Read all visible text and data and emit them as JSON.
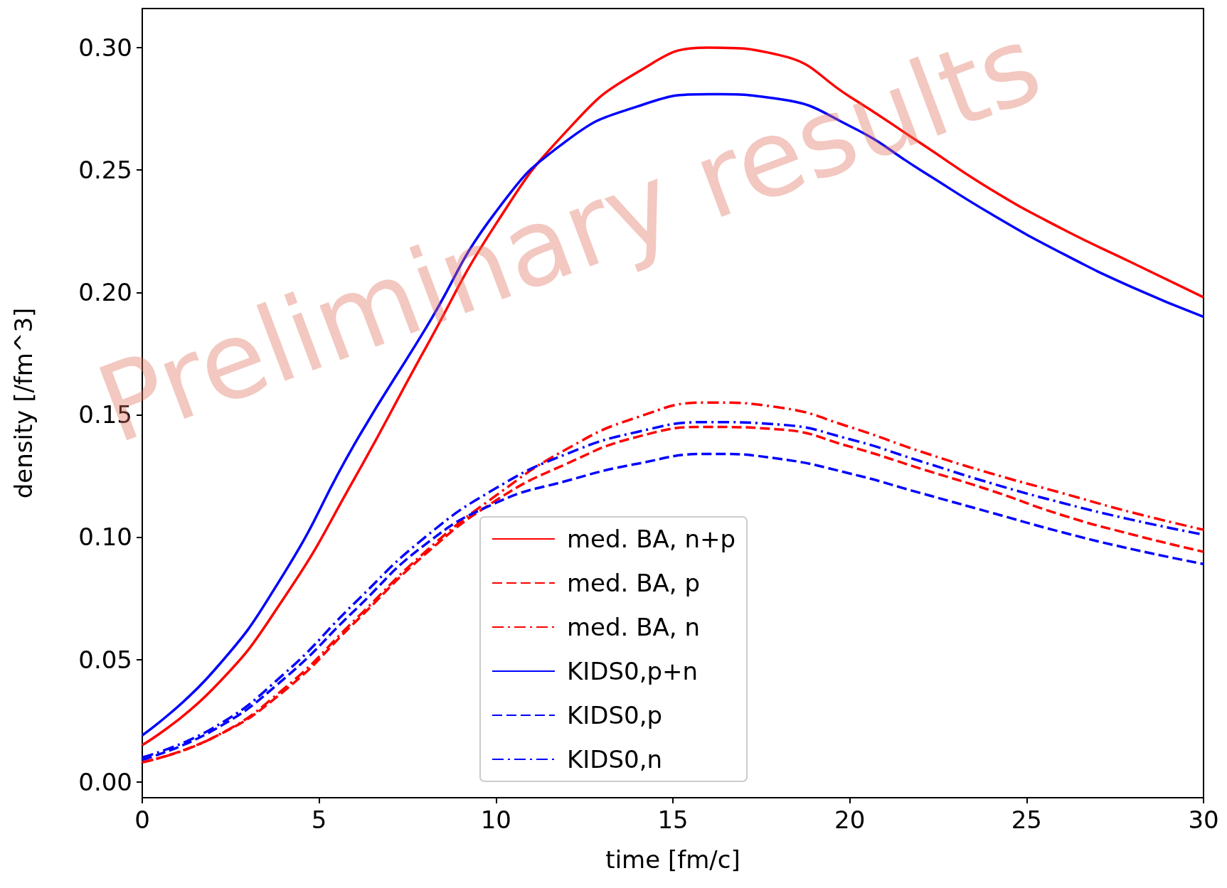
{
  "chart_data": {
    "type": "line",
    "xlabel": "time [fm/c]",
    "ylabel": "density [/fm^3]",
    "xlim": [
      0,
      30
    ],
    "ylim": [
      -0.0065,
      0.316
    ],
    "xticks": [
      0,
      5,
      10,
      15,
      20,
      25,
      30
    ],
    "yticks": [
      {
        "value": 0,
        "label": "0.00"
      },
      0.05,
      {
        "value": 0.1,
        "label": "0.10"
      },
      0.15,
      {
        "value": 0.2,
        "label": "0.20"
      },
      0.25,
      {
        "value": 0.3,
        "label": "0.30"
      }
    ],
    "grid": false,
    "legend": "bottom",
    "marker": "none",
    "annotations": [
      "Preliminary results"
    ],
    "x": [
      0,
      2,
      4,
      6,
      8,
      10,
      12,
      14,
      16,
      18,
      20,
      22,
      24,
      26,
      28,
      30
    ],
    "series": [
      {
        "name": "med. BA, n+p",
        "color": "#ff0000",
        "line_style": "solid",
        "values": [
          0.015,
          0.038,
          0.075,
          0.124,
          0.177,
          0.228,
          0.266,
          0.29,
          0.3,
          0.297,
          0.28,
          0.261,
          0.242,
          0.226,
          0.212,
          0.198
        ]
      },
      {
        "name": "med. BA, p",
        "color": "#ff0000",
        "line_style": "dashed",
        "values": [
          0.008,
          0.018,
          0.037,
          0.065,
          0.093,
          0.115,
          0.13,
          0.141,
          0.145,
          0.144,
          0.137,
          0.128,
          0.119,
          0.109,
          0.101,
          0.094
        ]
      },
      {
        "name": "med. BA, n",
        "color": "#ff0000",
        "line_style": "dashdot",
        "values": [
          0.008,
          0.018,
          0.038,
          0.066,
          0.094,
          0.117,
          0.136,
          0.149,
          0.155,
          0.153,
          0.145,
          0.135,
          0.126,
          0.118,
          0.11,
          0.103
        ]
      },
      {
        "name": "KIDS0,p+n",
        "color": "#0000ff",
        "line_style": "solid",
        "values": [
          0.019,
          0.045,
          0.085,
          0.138,
          0.185,
          0.233,
          0.262,
          0.276,
          0.281,
          0.279,
          0.268,
          0.25,
          0.232,
          0.216,
          0.202,
          0.19
        ]
      },
      {
        "name": "KIDS0,p",
        "color": "#0000ff",
        "line_style": "dashed",
        "values": [
          0.009,
          0.021,
          0.042,
          0.07,
          0.097,
          0.114,
          0.123,
          0.13,
          0.134,
          0.132,
          0.126,
          0.118,
          0.11,
          0.102,
          0.095,
          0.089
        ]
      },
      {
        "name": "KIDS0,n",
        "color": "#0000ff",
        "line_style": "dashdot",
        "values": [
          0.01,
          0.022,
          0.044,
          0.073,
          0.1,
          0.12,
          0.134,
          0.143,
          0.147,
          0.146,
          0.14,
          0.131,
          0.122,
          0.114,
          0.107,
          0.101
        ]
      }
    ]
  }
}
